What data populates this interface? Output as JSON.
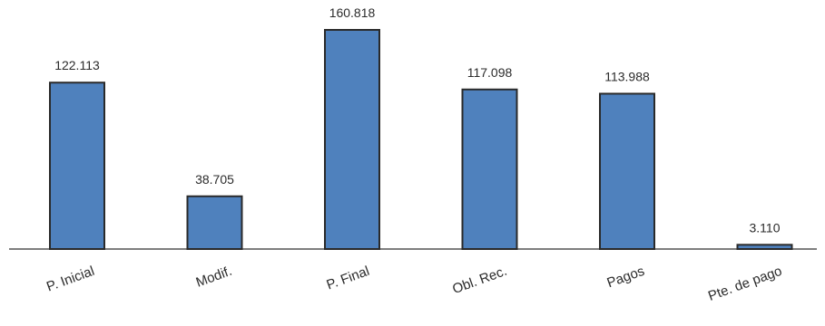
{
  "chart_data": {
    "type": "bar",
    "title": "",
    "xlabel": "",
    "ylabel": "",
    "categories": [
      "P. Inicial",
      "Modif.",
      "P. Final",
      "Obl. Rec.",
      "Pagos",
      "Pte. de pago"
    ],
    "values": [
      122.113,
      38.705,
      160.818,
      117.098,
      113.988,
      3.11
    ],
    "value_labels": [
      "122.113",
      "38.705",
      "160.818",
      "117.098",
      "113.988",
      "3.110"
    ],
    "ylim": [
      0,
      160.818
    ],
    "grid": false,
    "legend": "none",
    "colors": {
      "bar_fill": "#4f81bd",
      "bar_border": "#2a2a2a",
      "axis": "#333333",
      "text": "#2b2b2b"
    }
  }
}
